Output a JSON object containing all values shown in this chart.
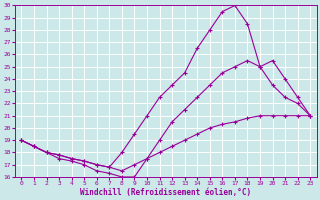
{
  "bg_color": "#cce8e8",
  "line_color": "#990099",
  "grid_color": "#ffffff",
  "xlabel": "Windchill (Refroidissement éolien,°C)",
  "xlabel_color": "#990099",
  "xlim": [
    -0.5,
    23.5
  ],
  "ylim": [
    16,
    30
  ],
  "yticks": [
    16,
    17,
    18,
    19,
    20,
    21,
    22,
    23,
    24,
    25,
    26,
    27,
    28,
    29,
    30
  ],
  "xticks": [
    0,
    1,
    2,
    3,
    4,
    5,
    6,
    7,
    8,
    9,
    10,
    11,
    12,
    13,
    14,
    15,
    16,
    17,
    18,
    19,
    20,
    21,
    22,
    23
  ],
  "lines": [
    {
      "x": [
        0,
        1,
        2,
        3,
        4,
        5,
        6,
        7,
        8,
        9,
        10,
        11,
        12,
        13,
        14,
        15,
        16,
        17,
        18,
        19,
        20,
        21,
        22,
        23
      ],
      "y": [
        19.0,
        18.5,
        18.0,
        17.8,
        17.5,
        17.3,
        17.0,
        16.8,
        16.5,
        17.0,
        17.5,
        18.0,
        18.5,
        19.0,
        19.5,
        20.0,
        20.3,
        20.5,
        20.8,
        21.0,
        21.0,
        21.0,
        21.0,
        21.0
      ]
    },
    {
      "x": [
        0,
        1,
        2,
        3,
        4,
        5,
        6,
        7,
        8,
        9,
        10,
        11,
        12,
        13,
        14,
        15,
        16,
        17,
        18,
        19,
        20,
        21,
        22,
        23
      ],
      "y": [
        19.0,
        18.5,
        18.0,
        17.5,
        17.3,
        17.0,
        16.5,
        16.3,
        16.0,
        16.0,
        17.5,
        19.0,
        20.5,
        21.5,
        22.5,
        23.5,
        24.5,
        25.0,
        25.5,
        25.0,
        25.5,
        24.0,
        22.5,
        21.0
      ]
    },
    {
      "x": [
        0,
        1,
        2,
        3,
        4,
        5,
        6,
        7,
        8,
        9,
        10,
        11,
        12,
        13,
        14,
        15,
        16,
        17,
        18,
        19,
        20,
        21,
        22,
        23
      ],
      "y": [
        19.0,
        18.5,
        18.0,
        17.8,
        17.5,
        17.3,
        17.0,
        16.8,
        18.0,
        19.5,
        21.0,
        22.5,
        23.5,
        24.5,
        26.5,
        28.0,
        29.5,
        30.0,
        28.5,
        25.0,
        23.5,
        22.5,
        22.0,
        21.0
      ]
    }
  ]
}
